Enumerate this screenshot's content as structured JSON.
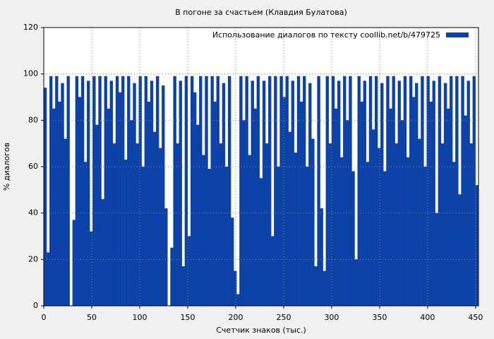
{
  "chart_data": {
    "type": "bar",
    "title": "В погоне за счастьем (Клавдия Булатова)",
    "x_label": "Счетчик знаков (тыс.)",
    "y_label": "% диалогов",
    "series": [
      {
        "name": "Использование диалогов по тексту  coollib.net/b/479725",
        "color": "#0c42a8",
        "values": [
          94,
          23,
          99,
          85,
          99,
          88,
          96,
          72,
          99,
          0,
          37,
          99,
          90,
          99,
          62,
          97,
          32,
          99,
          78,
          99,
          46,
          99,
          85,
          97,
          70,
          99,
          92,
          99,
          63,
          99,
          80,
          96,
          70,
          99,
          60,
          99,
          88,
          97,
          75,
          99,
          68,
          95,
          42,
          0,
          25,
          99,
          70,
          97,
          17,
          99,
          30,
          99,
          92,
          78,
          99,
          65,
          99,
          59,
          99,
          88,
          99,
          70,
          96,
          60,
          99,
          38,
          15,
          5,
          99,
          80,
          99,
          65,
          97,
          85,
          99,
          55,
          97,
          70,
          99,
          30,
          99,
          60,
          99,
          90,
          99,
          75,
          97,
          66,
          99,
          88,
          99,
          60,
          96,
          72,
          17,
          99,
          42,
          15,
          99,
          70,
          99,
          85,
          97,
          64,
          99,
          80,
          99,
          58,
          20,
          99,
          88,
          97,
          62,
          99,
          76,
          99,
          68,
          96,
          58,
          99,
          85,
          99,
          70,
          97,
          80,
          99,
          64,
          99,
          90,
          96,
          72,
          99,
          60,
          99,
          88,
          97,
          40,
          99,
          70,
          96,
          85,
          99,
          62,
          99,
          48,
          99,
          82,
          97,
          70,
          99,
          52
        ]
      }
    ],
    "x": [
      0,
      3,
      6,
      9,
      12,
      15,
      18,
      21,
      24,
      27,
      30,
      33,
      36,
      39,
      42,
      45,
      48,
      51,
      54,
      57,
      60,
      63,
      66,
      69,
      72,
      75,
      78,
      81,
      84,
      87,
      90,
      93,
      96,
      99,
      102,
      105,
      108,
      111,
      114,
      117,
      120,
      123,
      126,
      129,
      132,
      135,
      138,
      141,
      144,
      147,
      150,
      153,
      156,
      159,
      162,
      165,
      168,
      171,
      174,
      177,
      180,
      183,
      186,
      189,
      192,
      195,
      198,
      201,
      204,
      207,
      210,
      213,
      216,
      219,
      222,
      225,
      228,
      231,
      234,
      237,
      240,
      243,
      246,
      249,
      252,
      255,
      258,
      261,
      264,
      267,
      270,
      273,
      276,
      279,
      282,
      285,
      288,
      291,
      294,
      297,
      300,
      303,
      306,
      309,
      312,
      315,
      318,
      321,
      324,
      327,
      330,
      333,
      336,
      339,
      342,
      345,
      348,
      351,
      354,
      357,
      360,
      363,
      366,
      369,
      372,
      375,
      378,
      381,
      384,
      387,
      390,
      393,
      396,
      399,
      402,
      405,
      408,
      411,
      414,
      417,
      420,
      423,
      426,
      429,
      432,
      435,
      438,
      441,
      444,
      447,
      450
    ],
    "xlim": [
      0,
      453
    ],
    "xticks": [
      0,
      50,
      100,
      150,
      200,
      250,
      300,
      350,
      400,
      450
    ],
    "ylim": [
      0,
      120
    ],
    "yticks": [
      0,
      20,
      40,
      60,
      80,
      100,
      120
    ],
    "grid": true,
    "legend": "top-right"
  }
}
